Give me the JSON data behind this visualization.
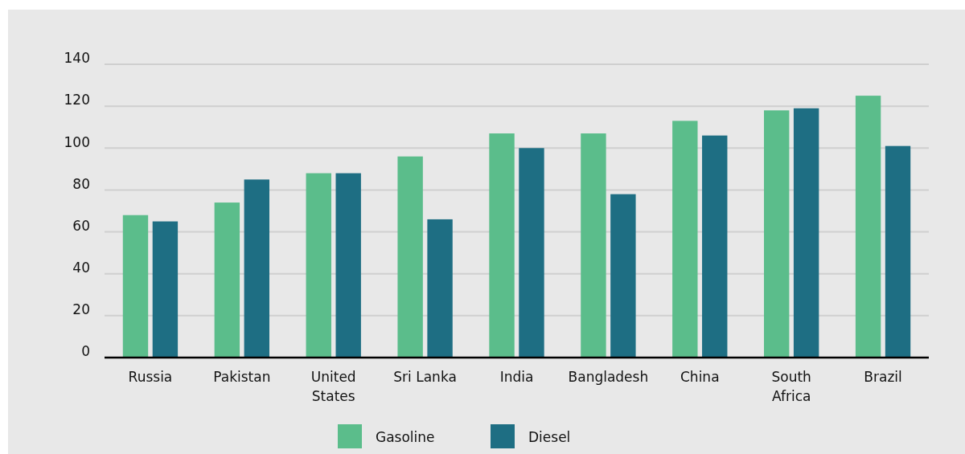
{
  "chart_data": {
    "type": "bar",
    "categories": [
      "Russia",
      "Pakistan",
      "United States",
      "Sri Lanka",
      "India",
      "Bangladesh",
      "China",
      "South Africa",
      "Brazil"
    ],
    "series": [
      {
        "name": "Gasoline",
        "color": "#5bbd8b",
        "values": [
          68,
          74,
          88,
          96,
          107,
          107,
          113,
          118,
          125
        ]
      },
      {
        "name": "Diesel",
        "color": "#1e6e83",
        "values": [
          65,
          85,
          88,
          66,
          100,
          78,
          106,
          119,
          101
        ]
      }
    ],
    "ylim": [
      0,
      140
    ],
    "yticks": [
      0,
      20,
      40,
      60,
      80,
      100,
      120,
      140
    ],
    "grid": "y",
    "legend": "bottom"
  }
}
